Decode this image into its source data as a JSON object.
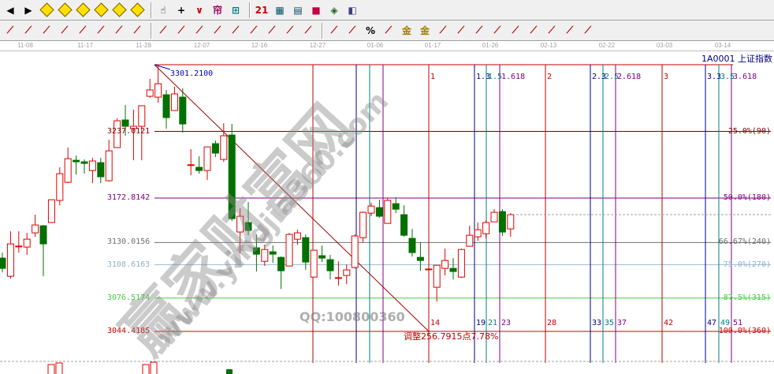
{
  "toolbar1": [
    "arrow-left",
    "arrow-right",
    "move-left",
    "move-right",
    "zoom-h",
    "zoom-in",
    "zoom-out",
    "zoom-all",
    "hand",
    "crosshair",
    "line-tool",
    "gann",
    "fib-tool",
    "calendar",
    "calculator",
    "notes",
    "save",
    "network",
    "connect"
  ],
  "toolbar2": [
    "circle-target",
    "star-burst",
    "box-grid",
    "parallel",
    "stroke-1",
    "stroke-2",
    "ruler",
    "width-arrows",
    "rect",
    "fan-lines",
    "gann-box",
    "gann-square",
    "angle",
    "zigzag",
    "grid-1",
    "grid-2",
    "parallel-lines",
    "fib-ratio",
    "fib-percent",
    "percent",
    "fib-percent-2",
    "gold-circle",
    "gold-lines",
    "speed-arc",
    "sine-wave",
    "gold-fan",
    "j-fan",
    "f-fan",
    "gold-fan-2",
    "god-fan",
    "win-fan",
    "four-fan"
  ],
  "date_axis": [
    "11-08",
    "11-17",
    "11-28",
    "12-07",
    "12-16",
    "12-27",
    "01-06",
    "01-17",
    "01-26",
    "02-13",
    "02-22",
    "03-03",
    "03-14"
  ],
  "symbol": "1A0001  上证指数",
  "chart_data": {
    "type": "candlestick",
    "high_price": 3301.21,
    "low_price": 3044.4185,
    "colors": {
      "up": "#e00000",
      "down": "#007000",
      "zone_main": "#c00000",
      "zone_1": "#000080",
      "zone_2": "#008080",
      "zone_3": "#800080"
    },
    "candles": [
      [
        3115.0,
        3120.3,
        3101.3,
        3105.1
      ],
      [
        3097.5,
        3140.8,
        3095.2,
        3128.7
      ],
      [
        3126.4,
        3140.8,
        3120.3,
        3126.6
      ],
      [
        3125.6,
        3139.3,
        3118.0,
        3133.2
      ],
      [
        3139.3,
        3156.8,
        3135.5,
        3146.9
      ],
      [
        3146.1,
        3146.9,
        3097.5,
        3128.7
      ],
      [
        3149.2,
        3171.2,
        3149.2,
        3171.2
      ],
      [
        3170.5,
        3202.4,
        3165.9,
        3196.3
      ],
      [
        3187.9,
        3221.4,
        3187.2,
        3210.7
      ],
      [
        3209.2,
        3213.8,
        3195.5,
        3207.7
      ],
      [
        3207.7,
        3210.0,
        3196.3,
        3206.2
      ],
      [
        3199.3,
        3211.5,
        3187.2,
        3208.5
      ],
      [
        3206.9,
        3211.5,
        3187.2,
        3193.3
      ],
      [
        3189.5,
        3229.0,
        3188.7,
        3218.3
      ],
      [
        3221.4,
        3249.5,
        3221.4,
        3247.2
      ],
      [
        3248.0,
        3262.4,
        3232.8,
        3241.9
      ],
      [
        3239.6,
        3257.9,
        3209.2,
        3241.9
      ],
      [
        3241.9,
        3261.7,
        3209.2,
        3261.7
      ],
      [
        3270.8,
        3287.5,
        3269.3,
        3276.9
      ],
      [
        3270.0,
        3301.2,
        3264.7,
        3282.9
      ],
      [
        3272.3,
        3276.9,
        3239.6,
        3250.3
      ],
      [
        3257.1,
        3279.9,
        3257.1,
        3273.1
      ],
      [
        3270.0,
        3278.4,
        3235.8,
        3244.2
      ],
      [
        3204.7,
        3219.9,
        3194.8,
        3204.9
      ],
      [
        3202.4,
        3213.0,
        3196.3,
        3199.3
      ],
      [
        3199.3,
        3222.1,
        3190.2,
        3222.1
      ],
      [
        3225.2,
        3228.2,
        3212.3,
        3216.1
      ],
      [
        3210.0,
        3244.9,
        3207.7,
        3232.8
      ],
      [
        3233.5,
        3244.2,
        3150.7,
        3153.0
      ],
      [
        3140.1,
        3162.9,
        3119.5,
        3155.3
      ],
      [
        3149.2,
        3168.9,
        3137.0,
        3141.6
      ],
      [
        3124.9,
        3137.8,
        3102.1,
        3118.8
      ],
      [
        3111.9,
        3127.9,
        3107.4,
        3123.3
      ],
      [
        3121.1,
        3127.1,
        3110.4,
        3118.8
      ],
      [
        3115.7,
        3116.5,
        3085.3,
        3102.8
      ],
      [
        3107.4,
        3139.3,
        3107.4,
        3137.8
      ],
      [
        3133.2,
        3142.3,
        3127.9,
        3139.3
      ],
      [
        3134.7,
        3137.8,
        3103.6,
        3111.2
      ],
      [
        3096.7,
        3122.6,
        3096.7,
        3122.6
      ],
      [
        3117.3,
        3127.1,
        3111.2,
        3115.0
      ],
      [
        3113.5,
        3118.0,
        3094.5,
        3102.8
      ],
      [
        3096.0,
        3111.9,
        3088.4,
        3096.2
      ],
      [
        3098.3,
        3108.9,
        3089.9,
        3103.6
      ],
      [
        3105.9,
        3137.8,
        3105.1,
        3136.3
      ],
      [
        3134.7,
        3159.8,
        3130.2,
        3159.1
      ],
      [
        3158.3,
        3168.2,
        3155.3,
        3165.1
      ],
      [
        3163.6,
        3171.2,
        3153.7,
        3155.3
      ],
      [
        3148.4,
        3172.7,
        3148.4,
        3170.5
      ],
      [
        3167.4,
        3173.5,
        3158.3,
        3162.1
      ],
      [
        3156.8,
        3165.9,
        3135.5,
        3137.0
      ],
      [
        3134.0,
        3143.1,
        3116.5,
        3120.3
      ],
      [
        3115.7,
        3130.2,
        3102.8,
        3112.7
      ],
      [
        3104.3,
        3104.3,
        3104.3,
        3104.5
      ],
      [
        3086.9,
        3108.1,
        3073.2,
        3108.1
      ],
      [
        3105.1,
        3124.1,
        3098.3,
        3112.7
      ],
      [
        3105.1,
        3115.0,
        3094.5,
        3102.1
      ],
      [
        3096.7,
        3124.1,
        3096.0,
        3123.3
      ],
      [
        3126.4,
        3146.1,
        3126.4,
        3137.0
      ],
      [
        3135.5,
        3149.2,
        3131.7,
        3142.3
      ],
      [
        3138.5,
        3151.5,
        3134.0,
        3149.2
      ],
      [
        3149.9,
        3162.1,
        3149.9,
        3159.1
      ],
      [
        3159.8,
        3162.1,
        3136.3,
        3140.1
      ],
      [
        3143.1,
        3158.3,
        3135.5,
        3156.8
      ]
    ],
    "peak_label": "3301.2100",
    "fib_levels": [
      {
        "price_label": "3237.0121",
        "pct_label": "25.0%(90)",
        "price": 3237.0121,
        "color": "#800000"
      },
      {
        "price_label": "3172.8142",
        "pct_label": "50.0%(180)",
        "price": 3172.8142,
        "color": "#800080"
      },
      {
        "price_label": "3130.0156",
        "pct_label": "66.67%(240)",
        "price": 3130.0156,
        "color": "#707070"
      },
      {
        "price_label": "3108.6163",
        "pct_label": "75.0%(270)",
        "price": 3108.6163,
        "color": "#a0c0d8"
      },
      {
        "price_label": "3076.5174",
        "pct_label": "87.5%(315)",
        "price": 3076.5174,
        "color": "#40d040"
      },
      {
        "price_label": "3044.4185",
        "pct_label": "100.0%(360)",
        "price": 3044.4185,
        "color": "#d00000"
      }
    ],
    "time_zones_top": [
      {
        "label": "1",
        "zone": "zone_main"
      },
      {
        "label": "1.3",
        "zone": "zone_1"
      },
      {
        "label": "1.5",
        "zone": "zone_2"
      },
      {
        "label": "1.618",
        "zone": "zone_3"
      },
      {
        "label": "2",
        "zone": "zone_main"
      },
      {
        "label": "2.3",
        "zone": "zone_1"
      },
      {
        "label": "2.5",
        "zone": "zone_2"
      },
      {
        "label": "2.618",
        "zone": "zone_3"
      },
      {
        "label": "3",
        "zone": "zone_main"
      },
      {
        "label": "3.3",
        "zone": "zone_1"
      },
      {
        "label": "3.5",
        "zone": "zone_2"
      },
      {
        "label": "3.618",
        "zone": "zone_3"
      }
    ],
    "time_zones_bottom": [
      "14",
      "19",
      "21",
      "23",
      "28",
      "33",
      "35",
      "37",
      "42",
      "47",
      "49",
      "51"
    ],
    "adjustment_label": "调整256.7915点7.78%"
  },
  "watermark": {
    "site": "赢家财富网",
    "url": "www.yingjia360.com",
    "qq": "QQ:100800360"
  }
}
